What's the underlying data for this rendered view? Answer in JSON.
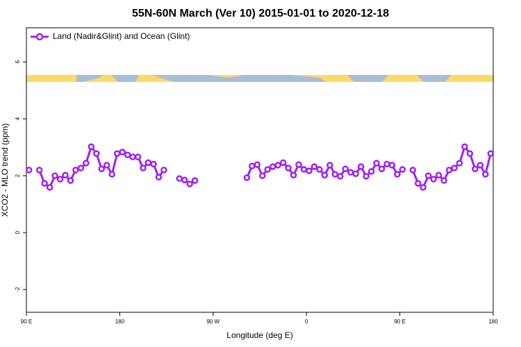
{
  "chart_data": {
    "type": "line",
    "title": "55N-60N March (Ver 10)   2015-01-01 to 2020-12-18",
    "xlabel": "Longitude (deg E)",
    "ylabel": "XCO2 - MLO trend (ppm)",
    "x": [
      92.5,
      97.5,
      102.5,
      107.5,
      112.5,
      117.5,
      122.5,
      127.5,
      132.5,
      137.5,
      142.5,
      147.5,
      152.5,
      157.5,
      162.5,
      167.5,
      172.5,
      177.5,
      182.5,
      187.5,
      192.5,
      197.5,
      202.5,
      207.5,
      212.5,
      217.5,
      222.5,
      227.5,
      232.5,
      237.5,
      242.5,
      247.5,
      252.5,
      257.5,
      262.5,
      267.5,
      272.5,
      277.5,
      282.5,
      287.5,
      292.5,
      297.5,
      302.5,
      307.5,
      312.5,
      317.5,
      322.5,
      327.5,
      332.5,
      337.5,
      342.5,
      347.5,
      352.5,
      357.5,
      362.5,
      367.5,
      372.5,
      377.5,
      382.5,
      387.5,
      392.5,
      397.5,
      402.5,
      407.5,
      412.5,
      417.5,
      422.5,
      427.5,
      432.5,
      437.5,
      442.5,
      447.5,
      452.5,
      457.5,
      462.5,
      467.5,
      472.5,
      477.5,
      482.5,
      487.5,
      492.5,
      497.5,
      502.5,
      507.5,
      512.5,
      517.5,
      522.5,
      527.5,
      532.5,
      537.5
    ],
    "series": [
      {
        "name": "Land (Nadir&Glint) and Ocean (Glint)",
        "color": "#a020f0",
        "values": [
          2.2,
          null,
          2.2,
          1.73,
          1.59,
          2.0,
          1.88,
          2.02,
          1.83,
          2.2,
          2.27,
          2.44,
          3.02,
          2.78,
          2.24,
          2.37,
          2.05,
          2.78,
          2.83,
          2.73,
          2.66,
          2.66,
          2.27,
          2.46,
          2.41,
          1.95,
          2.2,
          null,
          null,
          1.9,
          1.85,
          1.71,
          1.83,
          null,
          null,
          null,
          null,
          null,
          null,
          null,
          null,
          null,
          1.93,
          2.34,
          2.39,
          2.0,
          2.22,
          2.32,
          2.37,
          2.46,
          2.27,
          2.02,
          2.39,
          2.22,
          2.17,
          2.32,
          2.22,
          2.02,
          2.37,
          2.05,
          1.98,
          2.24,
          2.12,
          2.07,
          2.32,
          1.98,
          2.15,
          2.44,
          2.24,
          2.41,
          2.37,
          2.05,
          2.22,
          null,
          2.2,
          1.73,
          1.59,
          2.0,
          1.88,
          2.02,
          1.83,
          2.2,
          2.27,
          2.44,
          3.02,
          2.78,
          2.24,
          2.37,
          2.05,
          2.78
        ]
      }
    ],
    "xlim": [
      90,
      540
    ],
    "xticks": [
      {
        "value": 90,
        "label": "90 E"
      },
      180,
      {
        "value": 270,
        "label": "90 W"
      },
      {
        "value": 360,
        "label": "0"
      },
      {
        "value": 450,
        "label": "90 E"
      },
      {
        "value": 540,
        "label": "180"
      }
    ],
    "ylim": [
      -2.8,
      7.2
    ],
    "yticks": [
      -2,
      0,
      2,
      4,
      6
    ],
    "legend": "top-left"
  }
}
